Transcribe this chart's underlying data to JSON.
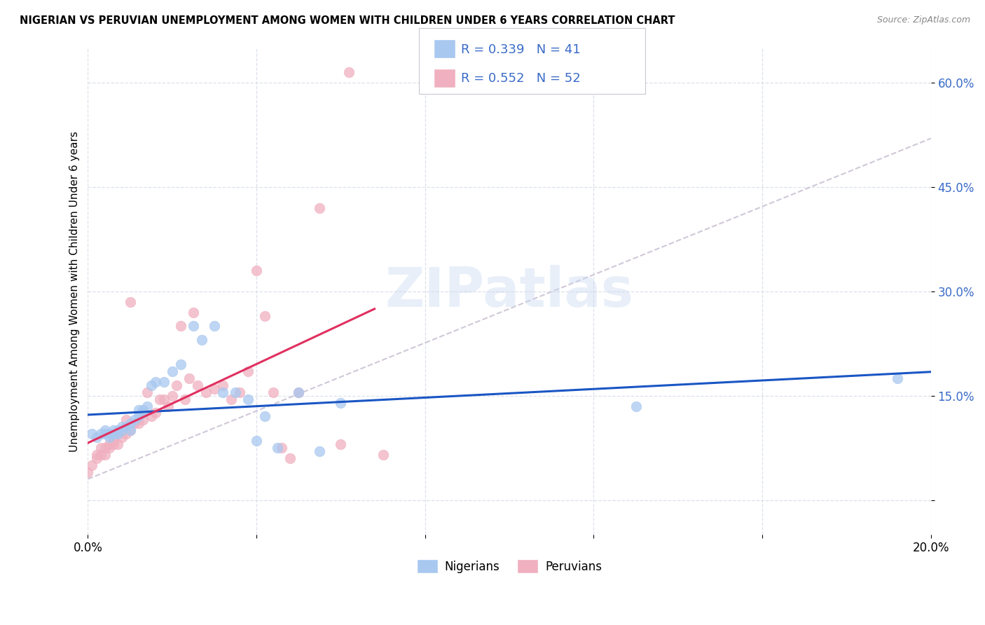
{
  "title": "NIGERIAN VS PERUVIAN UNEMPLOYMENT AMONG WOMEN WITH CHILDREN UNDER 6 YEARS CORRELATION CHART",
  "source": "Source: ZipAtlas.com",
  "ylabel": "Unemployment Among Women with Children Under 6 years",
  "xlim": [
    0.0,
    0.2
  ],
  "ylim": [
    -0.05,
    0.65
  ],
  "yticks": [
    0.0,
    0.15,
    0.3,
    0.45,
    0.6
  ],
  "ytick_labels": [
    "",
    "15.0%",
    "30.0%",
    "45.0%",
    "60.0%"
  ],
  "xticks": [
    0.0,
    0.04,
    0.08,
    0.12,
    0.16,
    0.2
  ],
  "xtick_labels": [
    "0.0%",
    "",
    "",
    "",
    "",
    "20.0%"
  ],
  "nigerian_color": "#a8c8f0",
  "peruvian_color": "#f0b0c0",
  "nigerian_line_color": "#1a56c4",
  "peruvian_line_color": "#e03060",
  "diagonal_color": "#d0c8d8",
  "R_nigerian": 0.339,
  "N_nigerian": 41,
  "R_peruvian": 0.552,
  "N_peruvian": 52,
  "legend_label_nigerian": "Nigerians",
  "legend_label_peruvian": "Peruvians",
  "watermark": "ZIPatlas",
  "nigerian_x": [
    0.001,
    0.002,
    0.003,
    0.004,
    0.004,
    0.005,
    0.005,
    0.006,
    0.006,
    0.007,
    0.007,
    0.008,
    0.008,
    0.009,
    0.01,
    0.01,
    0.011,
    0.012,
    0.012,
    0.013,
    0.013,
    0.014,
    0.015,
    0.016,
    0.018,
    0.02,
    0.022,
    0.025,
    0.027,
    0.03,
    0.032,
    0.035,
    0.038,
    0.04,
    0.042,
    0.045,
    0.05,
    0.055,
    0.06,
    0.13,
    0.192
  ],
  "nigerian_y": [
    0.095,
    0.09,
    0.095,
    0.095,
    0.1,
    0.09,
    0.095,
    0.095,
    0.1,
    0.095,
    0.1,
    0.1,
    0.105,
    0.105,
    0.1,
    0.11,
    0.115,
    0.12,
    0.13,
    0.125,
    0.13,
    0.135,
    0.165,
    0.17,
    0.17,
    0.185,
    0.195,
    0.25,
    0.23,
    0.25,
    0.155,
    0.155,
    0.145,
    0.085,
    0.12,
    0.075,
    0.155,
    0.07,
    0.14,
    0.135,
    0.175
  ],
  "peruvian_x": [
    0.0,
    0.001,
    0.002,
    0.002,
    0.003,
    0.003,
    0.004,
    0.004,
    0.005,
    0.005,
    0.006,
    0.006,
    0.007,
    0.007,
    0.008,
    0.008,
    0.009,
    0.009,
    0.01,
    0.01,
    0.011,
    0.012,
    0.013,
    0.014,
    0.015,
    0.016,
    0.017,
    0.018,
    0.019,
    0.02,
    0.021,
    0.022,
    0.023,
    0.024,
    0.025,
    0.026,
    0.028,
    0.03,
    0.032,
    0.034,
    0.036,
    0.038,
    0.04,
    0.042,
    0.044,
    0.046,
    0.048,
    0.05,
    0.055,
    0.06,
    0.062,
    0.07
  ],
  "peruvian_y": [
    0.04,
    0.05,
    0.06,
    0.065,
    0.065,
    0.075,
    0.065,
    0.075,
    0.075,
    0.08,
    0.08,
    0.085,
    0.08,
    0.095,
    0.09,
    0.1,
    0.095,
    0.115,
    0.1,
    0.285,
    0.11,
    0.11,
    0.115,
    0.155,
    0.12,
    0.125,
    0.145,
    0.145,
    0.135,
    0.15,
    0.165,
    0.25,
    0.145,
    0.175,
    0.27,
    0.165,
    0.155,
    0.16,
    0.165,
    0.145,
    0.155,
    0.185,
    0.33,
    0.265,
    0.155,
    0.075,
    0.06,
    0.155,
    0.42,
    0.08,
    0.615,
    0.065
  ],
  "background_color": "#ffffff",
  "grid_color": "#dde0ea"
}
